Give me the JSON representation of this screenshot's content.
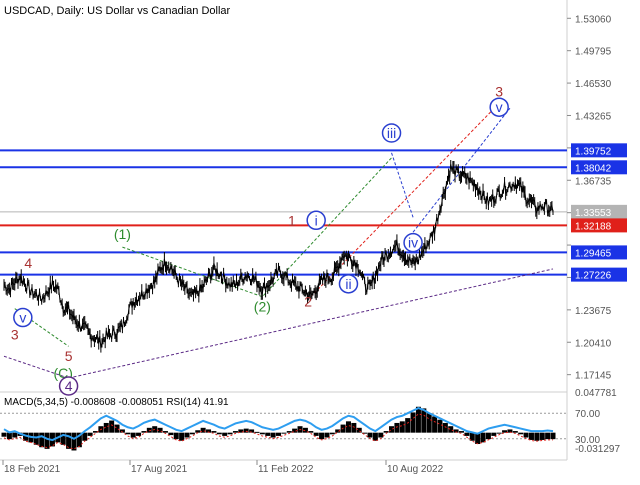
{
  "chart_data": [
    {
      "type": "candlestick",
      "title": "USDCAD, Daily:  US Dollar vs Canadian Dollar",
      "price_axis_ticks": [
        "1.53060",
        "1.49795",
        "1.46530",
        "1.43265",
        "1.39752",
        "1.38042",
        "1.36735",
        "1.33553",
        "1.32188",
        "1.29465",
        "1.27226",
        "1.23675",
        "1.20410",
        "1.17145"
      ],
      "price_axis_ticks_numeric": [
        1.5306,
        1.49795,
        1.4653,
        1.43265,
        1.4,
        1.36735,
        1.3347,
        1.30205,
        1.2694,
        1.23675,
        1.2041,
        1.17145
      ],
      "date_labels": [
        "18 Feb 2021",
        "17 Aug 2021",
        "11 Feb 2022",
        "10 Aug 2022"
      ],
      "ylim": [
        1.158,
        1.545
      ],
      "horizontal_levels": [
        {
          "value": 1.39752,
          "label": "1.39752",
          "color": "#1a33e6"
        },
        {
          "value": 1.38042,
          "label": "1.38042",
          "color": "#1a33e6"
        },
        {
          "value": 1.33553,
          "label": "1.33553",
          "color": "#b4b4b4"
        },
        {
          "value": 1.32188,
          "label": "1.32188",
          "color": "#e0201a"
        },
        {
          "value": 1.29465,
          "label": "1.29465",
          "color": "#1a33e6"
        },
        {
          "value": 1.27226,
          "label": "1.27226",
          "color": "#1a33e6"
        }
      ],
      "price_series_x_range": [
        0,
        102
      ],
      "price_series": [
        1.262,
        1.258,
        1.265,
        1.27,
        1.263,
        1.255,
        1.252,
        1.248,
        1.255,
        1.262,
        1.258,
        1.24,
        1.236,
        1.228,
        1.222,
        1.218,
        1.212,
        1.208,
        1.204,
        1.21,
        1.212,
        1.215,
        1.22,
        1.235,
        1.245,
        1.25,
        1.255,
        1.26,
        1.265,
        1.278,
        1.285,
        1.28,
        1.27,
        1.262,
        1.255,
        1.25,
        1.254,
        1.26,
        1.27,
        1.278,
        1.274,
        1.268,
        1.262,
        1.262,
        1.268,
        1.272,
        1.27,
        1.265,
        1.258,
        1.262,
        1.268,
        1.275,
        1.272,
        1.266,
        1.262,
        1.258,
        1.255,
        1.25,
        1.258,
        1.265,
        1.27,
        1.27,
        1.28,
        1.293,
        1.29,
        1.286,
        1.28,
        1.262,
        1.258,
        1.272,
        1.285,
        1.292,
        1.298,
        1.302,
        1.295,
        1.288,
        1.283,
        1.288,
        1.298,
        1.306,
        1.318,
        1.34,
        1.36,
        1.38,
        1.375,
        1.372,
        1.37,
        1.365,
        1.36,
        1.352,
        1.345,
        1.35,
        1.355,
        1.36,
        1.362,
        1.365,
        1.36,
        1.35,
        1.345,
        1.338,
        1.342,
        1.34,
        1.335
      ],
      "wave_labels": [
        {
          "text": "3",
          "style": "plain",
          "color": "#a83232",
          "x": 2,
          "y": 1.212
        },
        {
          "text": "4",
          "style": "plain",
          "color": "#a83232",
          "x": 4.5,
          "y": 1.284
        },
        {
          "text": "v",
          "style": "circle",
          "color": "#2a3fd0",
          "x": 3.5,
          "y": 1.229
        },
        {
          "text": "5",
          "style": "plain",
          "color": "#a83232",
          "x": 12,
          "y": 1.19
        },
        {
          "text": "(C)",
          "style": "plain",
          "color": "#2e8b2e",
          "x": 11,
          "y": 1.173
        },
        {
          "text": "4",
          "style": "circle",
          "color": "#5b2a86",
          "x": 12,
          "y": 1.16
        },
        {
          "text": "(1)",
          "style": "plain",
          "color": "#2e8b2e",
          "x": 22,
          "y": 1.313
        },
        {
          "text": "(2)",
          "style": "plain",
          "color": "#2e8b2e",
          "x": 48,
          "y": 1.24
        },
        {
          "text": "1",
          "style": "plain",
          "color": "#a83232",
          "x": 53.5,
          "y": 1.327
        },
        {
          "text": "i",
          "style": "circle",
          "color": "#2a3fd0",
          "x": 58,
          "y": 1.327
        },
        {
          "text": "2",
          "style": "plain",
          "color": "#a83232",
          "x": 56.5,
          "y": 1.245
        },
        {
          "text": "ii",
          "style": "circle",
          "color": "#2a3fd0",
          "x": 64,
          "y": 1.263
        },
        {
          "text": "iii",
          "style": "circle",
          "color": "#2a3fd0",
          "x": 72,
          "y": 1.415
        },
        {
          "text": "iv",
          "style": "circle",
          "color": "#2a3fd0",
          "x": 76,
          "y": 1.3045
        },
        {
          "text": "3",
          "style": "plain",
          "color": "#a83232",
          "x": 92,
          "y": 1.457
        },
        {
          "text": "v",
          "style": "circle",
          "color": "#2a3fd0",
          "x": 92,
          "y": 1.441
        }
      ],
      "wave_lines": [
        {
          "color": "#2e8b2e",
          "dash": true,
          "points": [
            [
              2,
              1.238
            ],
            [
              12,
              1.2
            ]
          ]
        },
        {
          "color": "#2e8b2e",
          "dash": true,
          "points": [
            [
              22,
              1.3
            ],
            [
              48,
              1.25
            ],
            [
              72,
              1.39
            ]
          ]
        },
        {
          "color": "#5b2a86",
          "dash": true,
          "points": [
            [
              0,
              1.19
            ],
            [
              12,
              1.168
            ]
          ]
        },
        {
          "color": "#5b2a86",
          "dash": true,
          "points": [
            [
              12,
              1.168
            ],
            [
              102,
              1.278
            ]
          ]
        },
        {
          "color": "#e0201a",
          "dash": true,
          "points": [
            [
              57,
              1.25
            ],
            [
              92,
              1.445
            ]
          ]
        },
        {
          "color": "#2a3fd0",
          "dash": true,
          "points": [
            [
              76,
              1.315
            ],
            [
              94,
              1.44
            ]
          ]
        },
        {
          "color": "#2a3fd0",
          "dash": true,
          "points": [
            [
              72,
              1.395
            ],
            [
              76,
              1.33
            ]
          ]
        }
      ]
    },
    {
      "type": "indicator",
      "title": "MACD(5,34,5) -0.008608 -0.008051 RSI(14) 41.91",
      "axis_labels": [
        "0.047781",
        "70.00",
        "30.00",
        "-0.031297"
      ],
      "macd_x_range": [
        0,
        102
      ],
      "macd_ylim": [
        -0.031297,
        0.047781
      ],
      "macd_histogram": [
        -0.005,
        -0.008,
        -0.006,
        -0.004,
        -0.01,
        -0.012,
        -0.015,
        -0.018,
        -0.02,
        -0.017,
        -0.012,
        -0.015,
        -0.02,
        -0.022,
        -0.018,
        -0.01,
        -0.004,
        0.002,
        0.008,
        0.012,
        0.015,
        0.01,
        0.004,
        -0.002,
        -0.006,
        -0.004,
        0.002,
        0.006,
        0.008,
        0.006,
        0.002,
        -0.003,
        -0.008,
        -0.01,
        -0.006,
        -0.002,
        0.003,
        0.006,
        0.004,
        0.002,
        -0.002,
        -0.004,
        -0.002,
        0.002,
        0.004,
        0.005,
        0.004,
        0.001,
        -0.002,
        -0.004,
        -0.006,
        -0.004,
        -0.001,
        0.002,
        0.005,
        0.008,
        0.006,
        0.002,
        -0.004,
        -0.008,
        -0.006,
        -0.002,
        0.004,
        0.01,
        0.014,
        0.012,
        0.006,
        0.0,
        -0.006,
        -0.01,
        -0.006,
        0.002,
        0.008,
        0.012,
        0.014,
        0.018,
        0.025,
        0.032,
        0.03,
        0.024,
        0.02,
        0.016,
        0.012,
        0.008,
        0.004,
        0.002,
        -0.004,
        -0.01,
        -0.014,
        -0.012,
        -0.008,
        -0.004,
        0.0,
        0.003,
        0.004,
        0.002,
        -0.002,
        -0.006,
        -0.009,
        -0.01,
        -0.009,
        -0.008,
        -0.008
      ],
      "rsi_levels": [
        70,
        30
      ],
      "rsi_series": [
        45,
        40,
        42,
        38,
        35,
        33,
        32,
        34,
        30,
        28,
        32,
        36,
        34,
        30,
        35,
        42,
        48,
        55,
        62,
        66,
        62,
        58,
        52,
        48,
        46,
        50,
        55,
        58,
        60,
        56,
        52,
        48,
        44,
        42,
        46,
        50,
        54,
        58,
        55,
        52,
        48,
        46,
        50,
        54,
        56,
        58,
        56,
        52,
        48,
        46,
        44,
        46,
        50,
        54,
        58,
        60,
        58,
        54,
        48,
        44,
        46,
        50,
        56,
        62,
        66,
        64,
        58,
        52,
        46,
        42,
        48,
        54,
        60,
        64,
        66,
        70,
        74,
        78,
        75,
        70,
        66,
        62,
        58,
        54,
        50,
        46,
        42,
        40,
        38,
        42,
        46,
        48,
        50,
        52,
        50,
        48,
        46,
        44,
        42,
        41.91,
        42,
        43,
        41.91
      ]
    }
  ]
}
